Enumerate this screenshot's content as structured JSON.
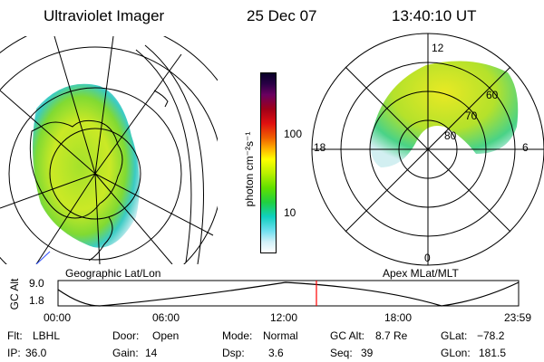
{
  "header": {
    "instrument": "Ultraviolet Imager",
    "date": "25 Dec 07",
    "time": "13:40:10 UT"
  },
  "geo_panel": {
    "label": "Geographic Lat/Lon"
  },
  "apex_panel": {
    "label": "Apex MLat/MLT",
    "mlt_labels": [
      "12",
      "18",
      "6",
      "0"
    ],
    "lat_labels": [
      "60",
      "70",
      "80"
    ]
  },
  "colorbar": {
    "unit_label": "photon cm⁻²s⁻¹",
    "tick_labels": [
      "100",
      "10"
    ]
  },
  "altitude_plot": {
    "ylabel": "GC Alt",
    "y_ticks": [
      "9.0",
      "1.8"
    ],
    "x_ticks": [
      "00:00",
      "06:00",
      "12:00",
      "18:00",
      "23:59"
    ],
    "marker_color": "#ff0000"
  },
  "status": {
    "row1": [
      {
        "label": "Flt:",
        "value": "LBHL"
      },
      {
        "label": "Door:",
        "value": "Open"
      },
      {
        "label": "Mode:",
        "value": "Normal"
      },
      {
        "label": "GC Alt:",
        "value": "8.7 Re"
      },
      {
        "label": "GLat:",
        "value": "−78.2"
      }
    ],
    "row2": [
      {
        "label": "IP:",
        "value": "36.0"
      },
      {
        "label": "Gain:",
        "value": "14"
      },
      {
        "label": "Dsp:",
        "value": "3.6"
      },
      {
        "label": "Seq:",
        "value": "39"
      },
      {
        "label": "GLon:",
        "value": "181.5"
      }
    ]
  }
}
